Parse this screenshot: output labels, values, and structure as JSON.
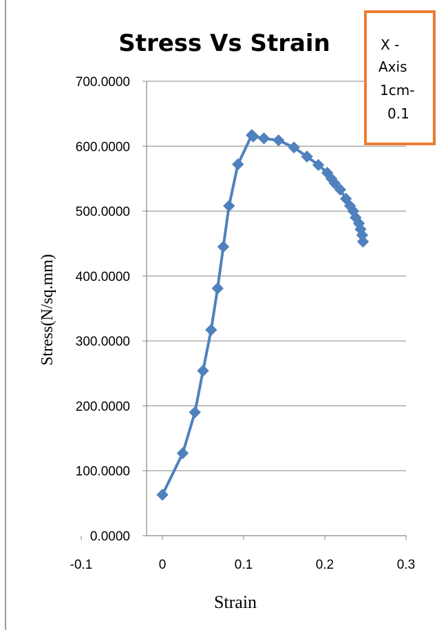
{
  "chart_data": {
    "type": "scatter",
    "title": "Stress Vs Strain",
    "xlabel": "Strain",
    "ylabel": "Stress(N/sq.mm)",
    "xlim": [
      -0.1,
      0.3
    ],
    "ylim": [
      0,
      700
    ],
    "x_ticks": [
      "-0.1",
      "0",
      "0.1",
      "0.2",
      "0.3"
    ],
    "y_ticks": [
      "0.0000",
      "100.0000",
      "200.0000",
      "300.0000",
      "400.0000",
      "500.0000",
      "600.0000",
      "700.0000"
    ],
    "grid": "horizontal",
    "marker": "diamond",
    "line_color": "#4f81bd",
    "series": [
      {
        "x": [
          0,
          0.025,
          0.04,
          0.05,
          0.06,
          0.068,
          0.075,
          0.082,
          0.093,
          0.11,
          0.112,
          0.125,
          0.143,
          0.162,
          0.178,
          0.192,
          0.203,
          0.208,
          0.212,
          0.219,
          0.226,
          0.231,
          0.235,
          0.238,
          0.242,
          0.244,
          0.246,
          0.247
        ],
        "y": [
          63,
          127,
          190,
          254,
          317,
          381,
          445,
          508,
          572,
          617,
          615,
          612,
          609,
          598,
          584,
          571,
          559,
          550,
          543,
          533,
          519,
          508,
          500,
          490,
          481,
          472,
          463,
          453
        ]
      }
    ]
  },
  "note": {
    "lines": [
      "X -",
      "Axis",
      "1cm-",
      "0.1"
    ],
    "border_color": "#ed7d31"
  }
}
